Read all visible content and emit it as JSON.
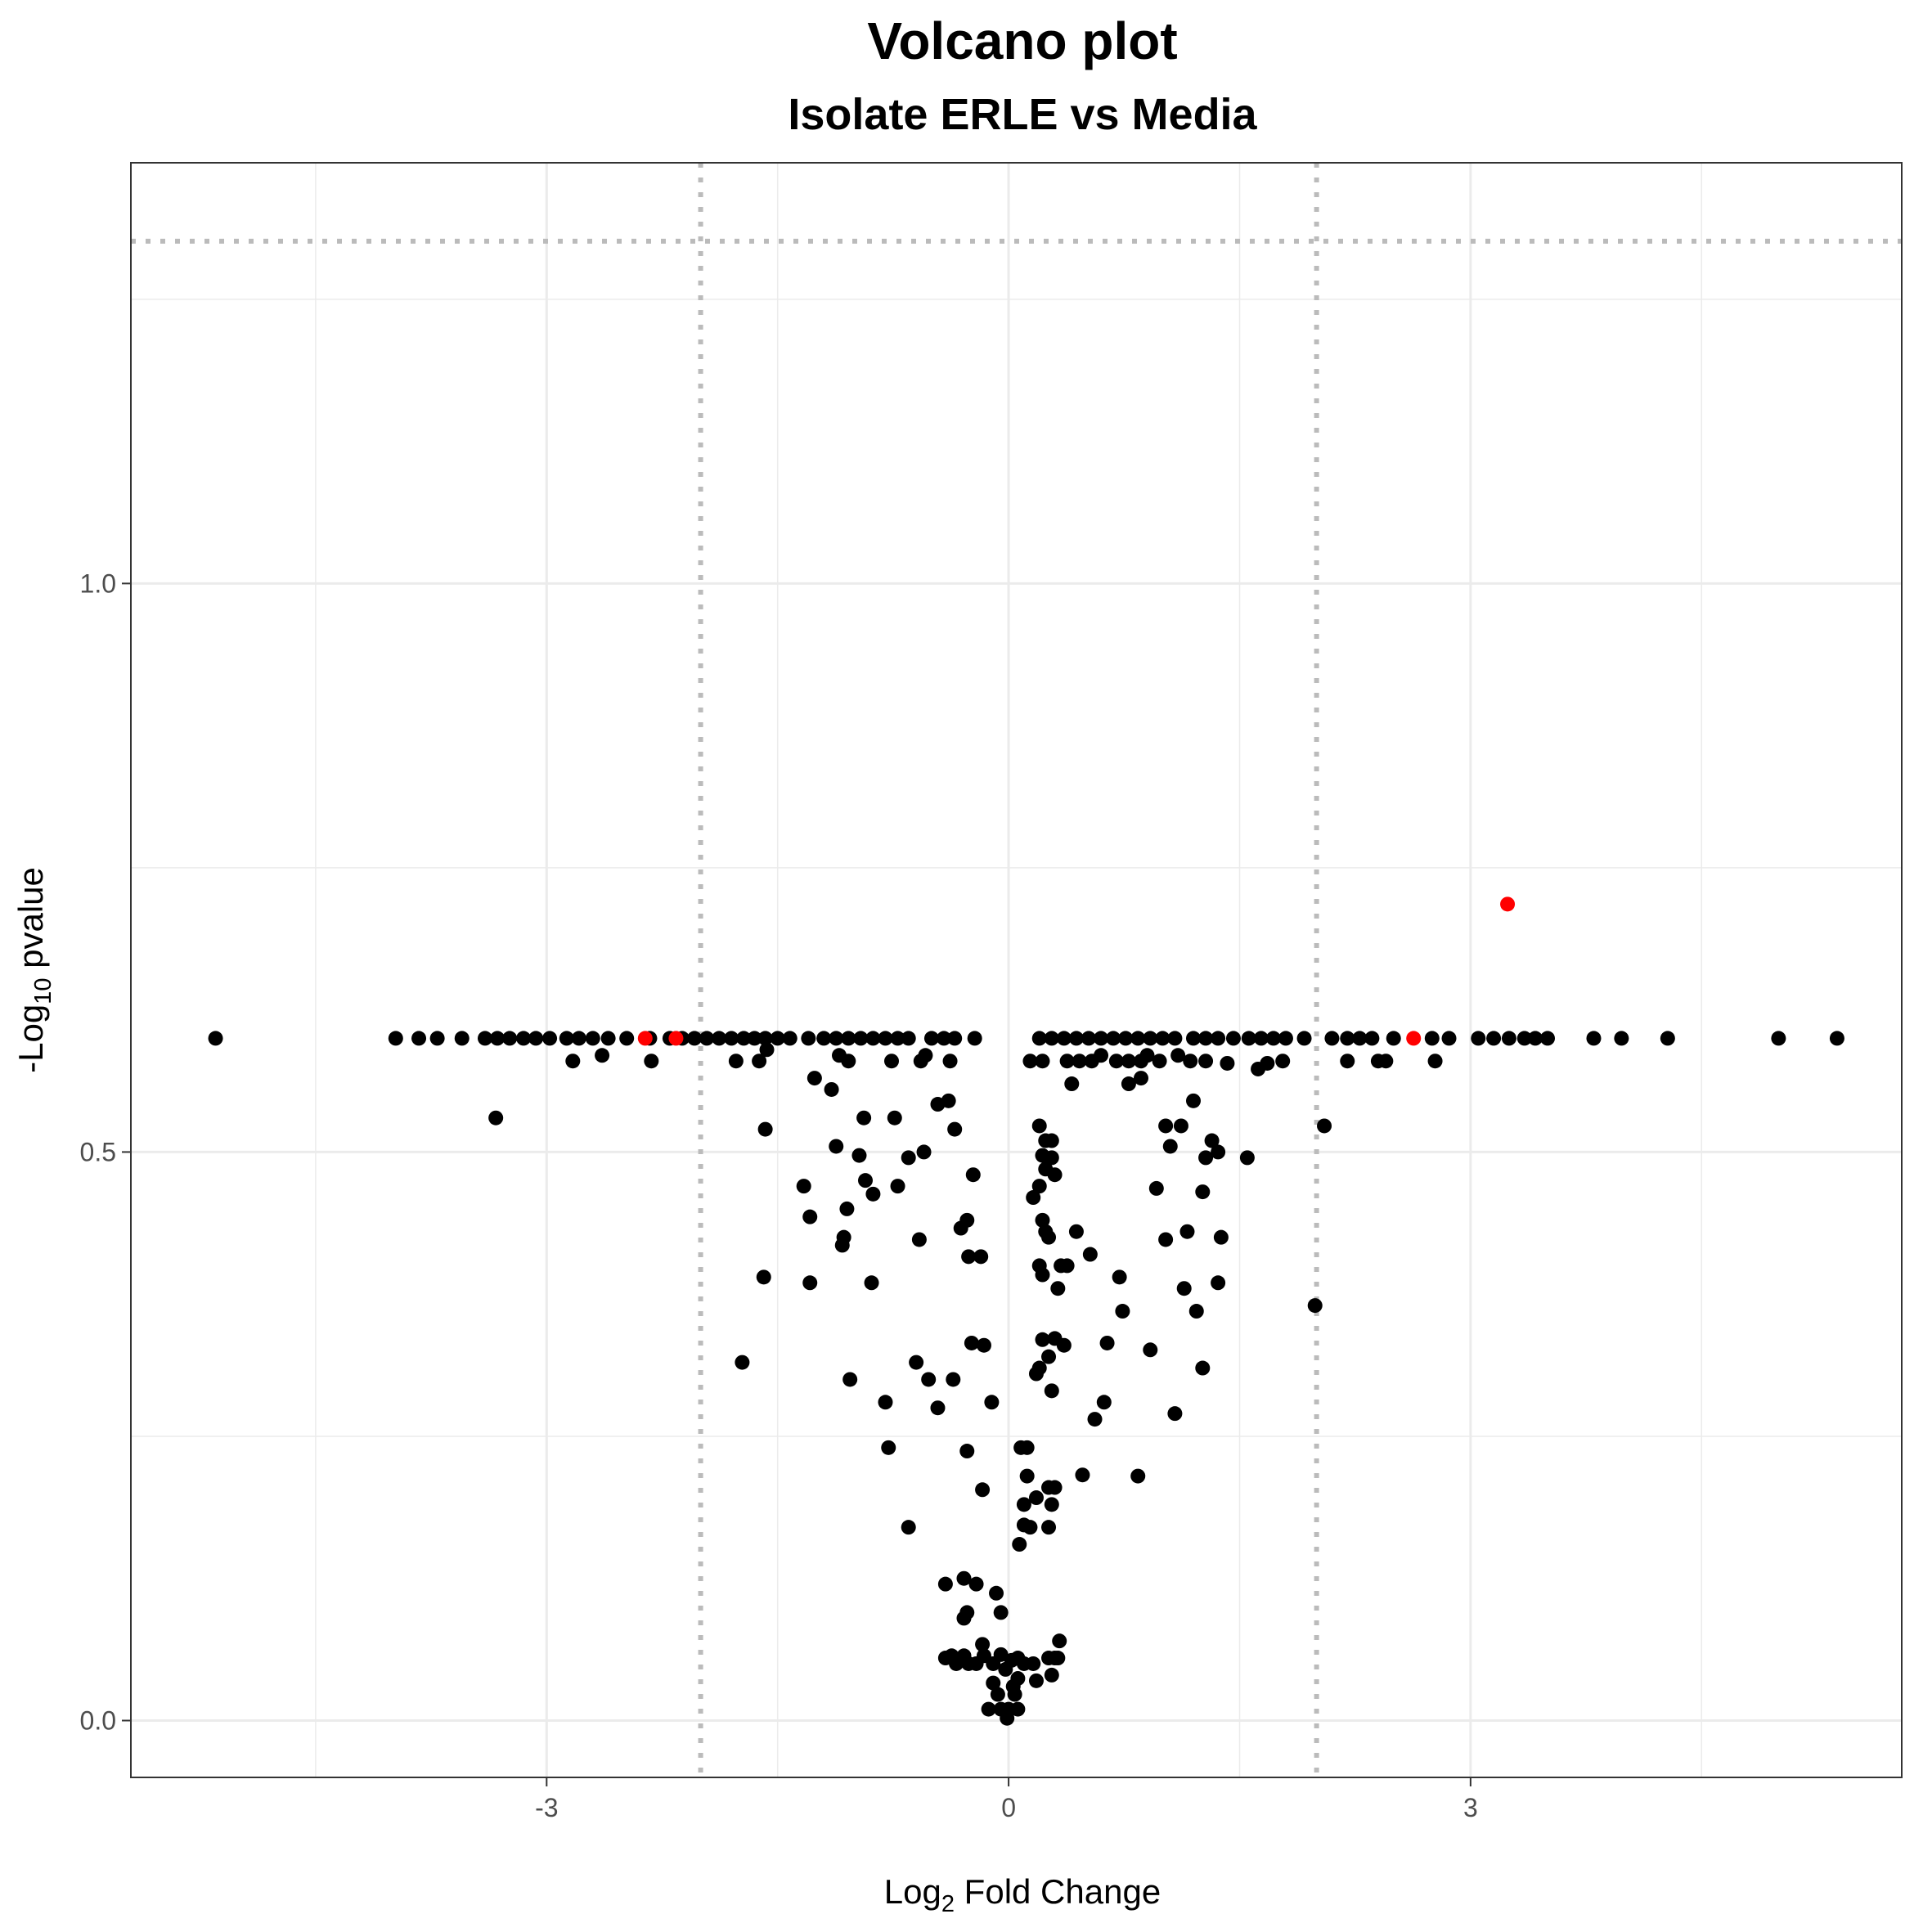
{
  "chart_data": {
    "type": "scatter",
    "title": "Volcano plot",
    "subtitle": "Isolate ERLE vs Media",
    "xlabel_main": "Log",
    "xlabel_sub": "2",
    "xlabel_rest": " Fold Change",
    "ylabel_main": "-Log",
    "ylabel_sub": "10",
    "ylabel_rest": " pvalue",
    "xlim": [
      -5.7,
      5.8
    ],
    "ylim": [
      -0.05,
      1.37
    ],
    "x_ticks": [
      -3,
      0,
      3
    ],
    "x_tick_labels": [
      "-3",
      "0",
      "3"
    ],
    "y_ticks": [
      0.0,
      0.5,
      1.0
    ],
    "y_tick_labels": [
      "0.0",
      "0.5",
      "1.0"
    ],
    "grid": true,
    "fc_cutoffs": [
      -2,
      2
    ],
    "p_cutoff_line": 1.301,
    "colors": {
      "ns": "#000000",
      "sig": "#ff0000",
      "cutoff": "#bbbbbb",
      "grid": "#ebebeb"
    },
    "series": [
      {
        "color": "#000000",
        "points": [
          [
            -5.15,
            0.6
          ],
          [
            -3.98,
            0.6
          ],
          [
            -3.83,
            0.6
          ],
          [
            -3.71,
            0.6
          ],
          [
            -3.55,
            0.6
          ],
          [
            -3.4,
            0.6
          ],
          [
            -3.32,
            0.6
          ],
          [
            -3.24,
            0.6
          ],
          [
            -3.15,
            0.6
          ],
          [
            -3.07,
            0.6
          ],
          [
            -2.98,
            0.6
          ],
          [
            -2.87,
            0.6
          ],
          [
            -2.79,
            0.6
          ],
          [
            -2.7,
            0.6
          ],
          [
            -2.6,
            0.6
          ],
          [
            -2.48,
            0.6
          ],
          [
            -2.33,
            0.6
          ],
          [
            -2.2,
            0.6
          ],
          [
            -2.12,
            0.6
          ],
          [
            -2.04,
            0.6
          ],
          [
            -1.96,
            0.6
          ],
          [
            -1.88,
            0.6
          ],
          [
            -1.8,
            0.6
          ],
          [
            -1.72,
            0.6
          ],
          [
            -1.65,
            0.6
          ],
          [
            -1.58,
            0.6
          ],
          [
            -1.5,
            0.6
          ],
          [
            -1.42,
            0.6
          ],
          [
            -1.3,
            0.6
          ],
          [
            -1.2,
            0.6
          ],
          [
            -1.12,
            0.6
          ],
          [
            -1.04,
            0.6
          ],
          [
            -0.96,
            0.6
          ],
          [
            -0.88,
            0.6
          ],
          [
            -0.8,
            0.6
          ],
          [
            -0.72,
            0.6
          ],
          [
            -0.65,
            0.6
          ],
          [
            -0.5,
            0.6
          ],
          [
            -0.42,
            0.6
          ],
          [
            -0.35,
            0.6
          ],
          [
            -0.22,
            0.6
          ],
          [
            0.2,
            0.6
          ],
          [
            0.28,
            0.6
          ],
          [
            0.36,
            0.6
          ],
          [
            0.44,
            0.6
          ],
          [
            0.52,
            0.6
          ],
          [
            0.6,
            0.6
          ],
          [
            0.68,
            0.6
          ],
          [
            0.76,
            0.6
          ],
          [
            0.84,
            0.6
          ],
          [
            0.92,
            0.6
          ],
          [
            1.0,
            0.6
          ],
          [
            1.08,
            0.6
          ],
          [
            1.2,
            0.6
          ],
          [
            1.28,
            0.6
          ],
          [
            1.36,
            0.6
          ],
          [
            1.46,
            0.6
          ],
          [
            1.56,
            0.6
          ],
          [
            1.64,
            0.6
          ],
          [
            1.72,
            0.6
          ],
          [
            1.8,
            0.6
          ],
          [
            1.92,
            0.6
          ],
          [
            2.1,
            0.6
          ],
          [
            2.2,
            0.6
          ],
          [
            2.28,
            0.6
          ],
          [
            2.36,
            0.6
          ],
          [
            2.5,
            0.6
          ],
          [
            2.75,
            0.6
          ],
          [
            2.86,
            0.6
          ],
          [
            3.05,
            0.6
          ],
          [
            3.15,
            0.6
          ],
          [
            3.25,
            0.6
          ],
          [
            3.35,
            0.6
          ],
          [
            3.42,
            0.6
          ],
          [
            3.5,
            0.6
          ],
          [
            3.8,
            0.6
          ],
          [
            3.98,
            0.6
          ],
          [
            4.28,
            0.6
          ],
          [
            5.0,
            0.6
          ],
          [
            5.38,
            0.6
          ],
          [
            -3.33,
            0.53
          ],
          [
            -2.83,
            0.58
          ],
          [
            -2.64,
            0.585
          ],
          [
            -2.32,
            0.58
          ],
          [
            -1.77,
            0.58
          ],
          [
            -1.62,
            0.58
          ],
          [
            -1.57,
            0.59
          ],
          [
            -1.26,
            0.565
          ],
          [
            -1.1,
            0.585
          ],
          [
            -1.04,
            0.58
          ],
          [
            -0.76,
            0.58
          ],
          [
            -0.57,
            0.58
          ],
          [
            -0.54,
            0.585
          ],
          [
            -0.38,
            0.58
          ],
          [
            0.14,
            0.58
          ],
          [
            0.22,
            0.58
          ],
          [
            0.38,
            0.58
          ],
          [
            0.46,
            0.58
          ],
          [
            0.54,
            0.58
          ],
          [
            0.6,
            0.585
          ],
          [
            0.7,
            0.58
          ],
          [
            0.78,
            0.58
          ],
          [
            0.86,
            0.58
          ],
          [
            0.9,
            0.585
          ],
          [
            0.98,
            0.58
          ],
          [
            1.1,
            0.585
          ],
          [
            1.18,
            0.58
          ],
          [
            1.28,
            0.58
          ],
          [
            1.42,
            0.578
          ],
          [
            1.62,
            0.573
          ],
          [
            1.68,
            0.578
          ],
          [
            1.78,
            0.58
          ],
          [
            2.2,
            0.58
          ],
          [
            2.4,
            0.58
          ],
          [
            2.45,
            0.58
          ],
          [
            2.77,
            0.58
          ],
          [
            -1.58,
            0.52
          ],
          [
            -1.15,
            0.555
          ],
          [
            -0.94,
            0.53
          ],
          [
            -0.74,
            0.53
          ],
          [
            -0.46,
            0.542
          ],
          [
            -0.39,
            0.545
          ],
          [
            -0.35,
            0.52
          ],
          [
            0.78,
            0.56
          ],
          [
            0.86,
            0.565
          ],
          [
            1.2,
            0.545
          ],
          [
            1.12,
            0.523
          ],
          [
            1.02,
            0.523
          ],
          [
            0.41,
            0.56
          ],
          [
            0.2,
            0.523
          ],
          [
            0.24,
            0.51
          ],
          [
            0.28,
            0.51
          ],
          [
            2.05,
            0.523
          ],
          [
            -1.12,
            0.505
          ],
          [
            -0.97,
            0.497
          ],
          [
            -0.65,
            0.495
          ],
          [
            -0.55,
            0.5
          ],
          [
            -0.23,
            0.48
          ],
          [
            -0.93,
            0.475
          ],
          [
            -0.72,
            0.47
          ],
          [
            -1.33,
            0.47
          ],
          [
            -0.88,
            0.463
          ],
          [
            -1.05,
            0.45
          ],
          [
            -1.29,
            0.443
          ],
          [
            0.22,
            0.497
          ],
          [
            0.28,
            0.495
          ],
          [
            0.24,
            0.485
          ],
          [
            0.3,
            0.48
          ],
          [
            0.2,
            0.47
          ],
          [
            0.16,
            0.46
          ],
          [
            0.96,
            0.468
          ],
          [
            1.28,
            0.495
          ],
          [
            1.32,
            0.51
          ],
          [
            1.36,
            0.5
          ],
          [
            1.55,
            0.495
          ],
          [
            1.26,
            0.465
          ],
          [
            1.05,
            0.505
          ],
          [
            -0.27,
            0.44
          ],
          [
            -0.31,
            0.433
          ],
          [
            0.22,
            0.44
          ],
          [
            0.24,
            0.43
          ],
          [
            0.26,
            0.425
          ],
          [
            0.44,
            0.43
          ],
          [
            1.02,
            0.423
          ],
          [
            1.16,
            0.43
          ],
          [
            1.38,
            0.425
          ],
          [
            -1.07,
            0.425
          ],
          [
            -1.08,
            0.418
          ],
          [
            -0.58,
            0.423
          ],
          [
            -0.26,
            0.408
          ],
          [
            -0.18,
            0.408
          ],
          [
            0.2,
            0.4
          ],
          [
            0.22,
            0.392
          ],
          [
            0.34,
            0.4
          ],
          [
            0.38,
            0.4
          ],
          [
            0.53,
            0.41
          ],
          [
            -1.59,
            0.39
          ],
          [
            -1.29,
            0.385
          ],
          [
            -0.89,
            0.385
          ],
          [
            0.32,
            0.38
          ],
          [
            0.72,
            0.39
          ],
          [
            1.14,
            0.38
          ],
          [
            1.36,
            0.385
          ],
          [
            1.22,
            0.36
          ],
          [
            0.74,
            0.36
          ],
          [
            1.99,
            0.365
          ],
          [
            -1.73,
            0.315
          ],
          [
            -1.03,
            0.3
          ],
          [
            -0.6,
            0.315
          ],
          [
            -0.52,
            0.3
          ],
          [
            -0.36,
            0.3
          ],
          [
            -0.24,
            0.332
          ],
          [
            -0.16,
            0.33
          ],
          [
            0.22,
            0.335
          ],
          [
            0.26,
            0.32
          ],
          [
            0.3,
            0.336
          ],
          [
            0.36,
            0.33
          ],
          [
            0.64,
            0.332
          ],
          [
            0.92,
            0.326
          ],
          [
            1.26,
            0.31
          ],
          [
            0.2,
            0.31
          ],
          [
            0.18,
            0.305
          ],
          [
            0.28,
            0.29
          ],
          [
            0.62,
            0.28
          ],
          [
            0.56,
            0.265
          ],
          [
            1.08,
            0.27
          ],
          [
            -0.8,
            0.28
          ],
          [
            -0.46,
            0.275
          ],
          [
            -0.11,
            0.28
          ],
          [
            -0.78,
            0.24
          ],
          [
            -0.27,
            0.237
          ],
          [
            0.08,
            0.24
          ],
          [
            0.12,
            0.24
          ],
          [
            0.12,
            0.215
          ],
          [
            0.48,
            0.216
          ],
          [
            0.84,
            0.215
          ],
          [
            0.26,
            0.205
          ],
          [
            0.3,
            0.205
          ],
          [
            0.18,
            0.196
          ],
          [
            0.28,
            0.19
          ],
          [
            -0.17,
            0.203
          ],
          [
            0.1,
            0.19
          ],
          [
            0.1,
            0.172
          ],
          [
            0.14,
            0.17
          ],
          [
            0.26,
            0.17
          ],
          [
            -0.65,
            0.17
          ],
          [
            0.07,
            0.155
          ],
          [
            -0.41,
            0.12
          ],
          [
            -0.29,
            0.125
          ],
          [
            -0.21,
            0.12
          ],
          [
            -0.08,
            0.112
          ],
          [
            -0.29,
            0.09
          ],
          [
            -0.27,
            0.095
          ],
          [
            -0.05,
            0.095
          ],
          [
            -0.41,
            0.055
          ],
          [
            -0.37,
            0.057
          ],
          [
            -0.34,
            0.05
          ],
          [
            -0.29,
            0.057
          ],
          [
            -0.26,
            0.05
          ],
          [
            -0.21,
            0.05
          ],
          [
            -0.17,
            0.067
          ],
          [
            -0.16,
            0.057
          ],
          [
            -0.1,
            0.05
          ],
          [
            -0.05,
            0.058
          ],
          [
            -0.02,
            0.045
          ],
          [
            0.02,
            0.053
          ],
          [
            0.06,
            0.055
          ],
          [
            0.1,
            0.05
          ],
          [
            0.16,
            0.05
          ],
          [
            0.26,
            0.055
          ],
          [
            0.3,
            0.055
          ],
          [
            0.32,
            0.055
          ],
          [
            0.33,
            0.07
          ],
          [
            -0.1,
            0.033
          ],
          [
            -0.07,
            0.023
          ],
          [
            0.03,
            0.03
          ],
          [
            0.06,
            0.037
          ],
          [
            0.04,
            0.023
          ],
          [
            0.18,
            0.035
          ],
          [
            0.28,
            0.04
          ],
          [
            -0.13,
            0.01
          ],
          [
            -0.05,
            0.01
          ],
          [
            0.0,
            0.01
          ],
          [
            0.06,
            0.01
          ],
          [
            -0.01,
            0.002
          ]
        ]
      },
      {
        "color": "#ff0000",
        "points": [
          [
            -2.36,
            0.6
          ],
          [
            -2.16,
            0.6
          ],
          [
            2.63,
            0.6
          ],
          [
            3.24,
            0.718
          ]
        ]
      }
    ]
  }
}
